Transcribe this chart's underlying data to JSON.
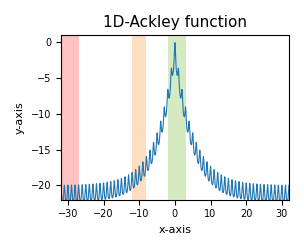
{
  "title": "1D-Ackley function",
  "xlabel": "x-axis",
  "ylabel": "y-axis",
  "xlim": [
    -32,
    32
  ],
  "ylim": [
    -22,
    1
  ],
  "x_start": -32,
  "x_end": 32,
  "num_points": 6000,
  "line_color": "#1f77b4",
  "line_width": 0.8,
  "regions": [
    {
      "xmin": -32,
      "xmax": -27,
      "color": "#ff6666",
      "alpha": 0.4
    },
    {
      "xmin": -12,
      "xmax": -8,
      "color": "#ffaa66",
      "alpha": 0.4
    },
    {
      "xmin": -2,
      "xmax": 3,
      "color": "#99cc66",
      "alpha": 0.4
    }
  ],
  "xticks": [
    -30,
    -20,
    -10,
    0,
    10,
    20,
    30
  ],
  "yticks": [
    0,
    -5,
    -10,
    -15,
    -20
  ],
  "title_fontsize": 11,
  "label_fontsize": 8,
  "tick_fontsize": 7,
  "figsize": [
    3.04,
    2.5
  ],
  "dpi": 100,
  "ackley_a": 20,
  "ackley_b": 0.2,
  "ackley_c": 6.283185307179586
}
